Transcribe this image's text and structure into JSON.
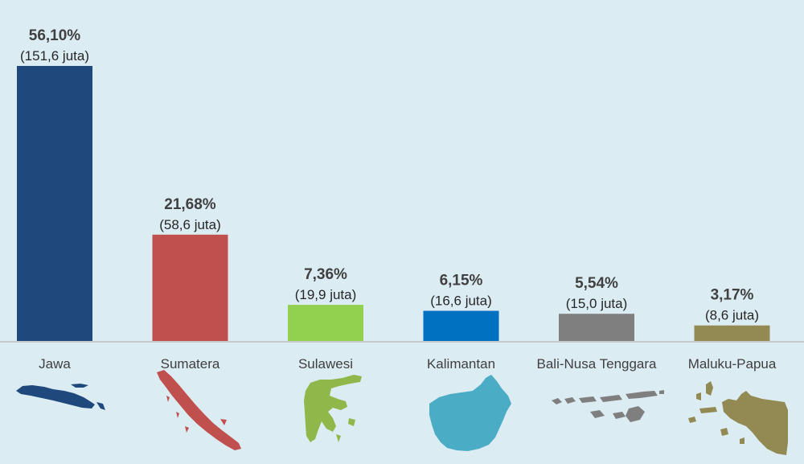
{
  "chart_data": {
    "type": "bar",
    "categories": [
      "Jawa",
      "Sumatera",
      "Sulawesi",
      "Kalimantan",
      "Bali-Nusa Tenggara",
      "Maluku-Papua"
    ],
    "values": [
      56.1,
      21.68,
      7.36,
      6.15,
      5.54,
      3.17
    ],
    "percent_labels": [
      "56,10%",
      "21,68%",
      "7,36%",
      "6,15%",
      "5,54%",
      "3,17%"
    ],
    "population_labels": [
      "(151,6 juta)",
      "(58,6 juta)",
      "(19,9 juta)",
      "(16,6 juta)",
      "(15,0 juta)",
      "(8,6 juta)"
    ],
    "colors": [
      "#1f497d",
      "#c0504d",
      "#92d050",
      "#0070c0",
      "#7f7f7f",
      "#938953"
    ],
    "region_icons": [
      "jawa-map-icon",
      "sumatera-map-icon",
      "sulawesi-map-icon",
      "kalimantan-map-icon",
      "bali-nusa-tenggara-map-icon",
      "maluku-papua-map-icon"
    ],
    "ylim": [
      0,
      56.1
    ],
    "grid": false,
    "legend": "none"
  }
}
